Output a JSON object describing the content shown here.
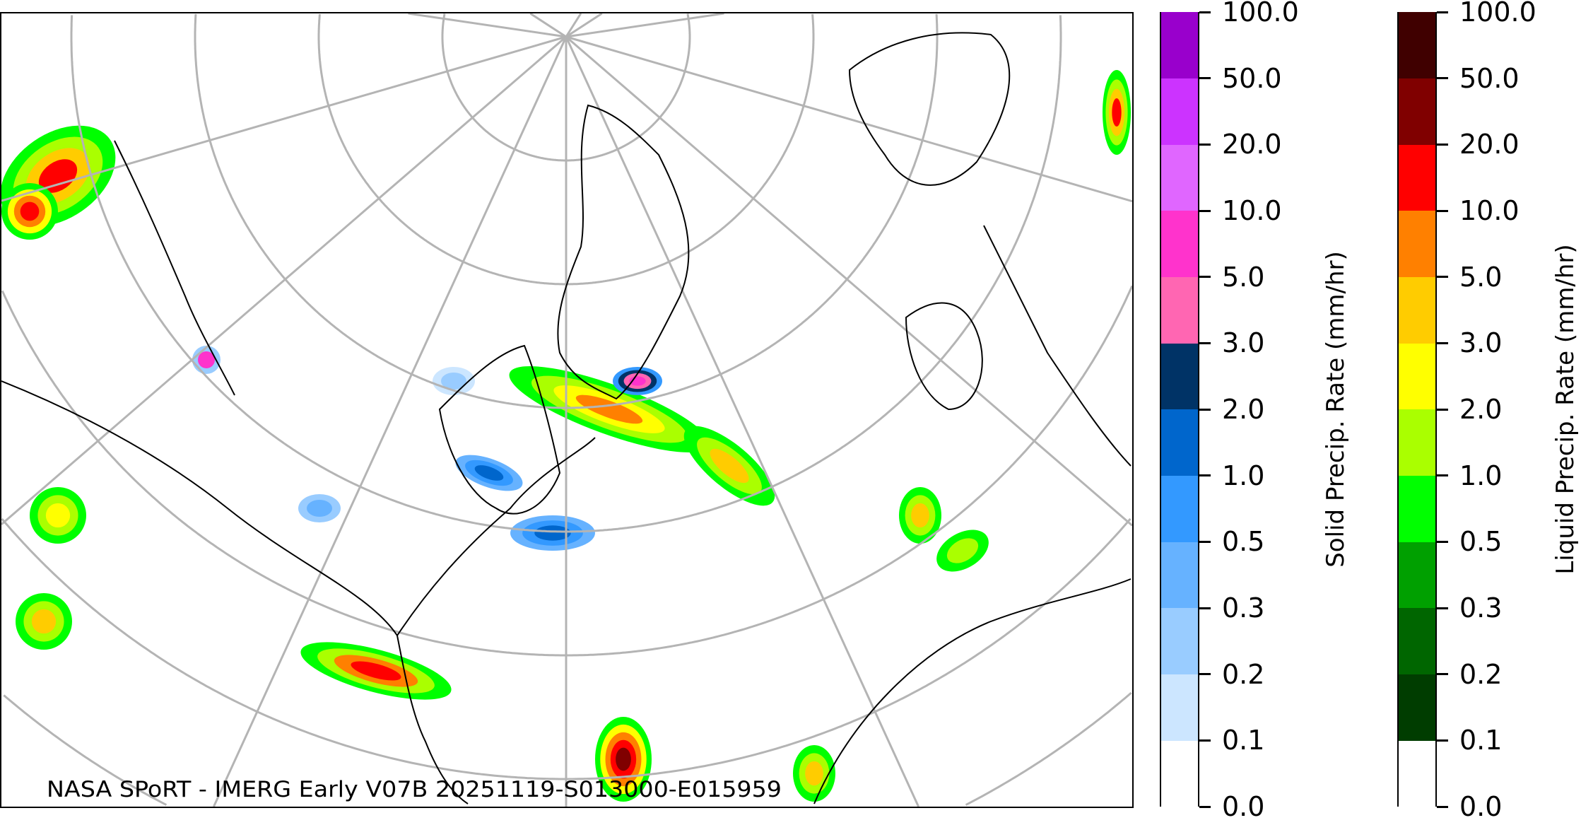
{
  "map": {
    "caption": "NASA SPoRT - IMERG Early V07B 20251119-S013000-E015959",
    "graticule_color": "#b4b4b4",
    "coastline_color": "#000000"
  },
  "colorbars": [
    {
      "title": "Solid Precip. Rate (mm/hr)",
      "ticks": [
        "0.0",
        "0.1",
        "0.2",
        "0.3",
        "0.5",
        "1.0",
        "2.0",
        "3.0",
        "5.0",
        "10.0",
        "20.0",
        "50.0",
        "100.0"
      ],
      "colors": [
        "#ffffff",
        "#cce6ff",
        "#99ccff",
        "#66b2ff",
        "#3399ff",
        "#0066cc",
        "#003366",
        "#ff66b2",
        "#ff33cc",
        "#e066ff",
        "#cc33ff",
        "#9900cc"
      ]
    },
    {
      "title": "Liquid Precip. Rate (mm/hr)",
      "ticks": [
        "0.0",
        "0.1",
        "0.2",
        "0.3",
        "0.5",
        "1.0",
        "2.0",
        "3.0",
        "5.0",
        "10.0",
        "20.0",
        "50.0",
        "100.0"
      ],
      "colors": [
        "#ffffff",
        "#003d00",
        "#006600",
        "#00a000",
        "#00ff00",
        "#aaff00",
        "#ffff00",
        "#ffcc00",
        "#ff8000",
        "#ff0000",
        "#800000",
        "#400000"
      ]
    }
  ]
}
